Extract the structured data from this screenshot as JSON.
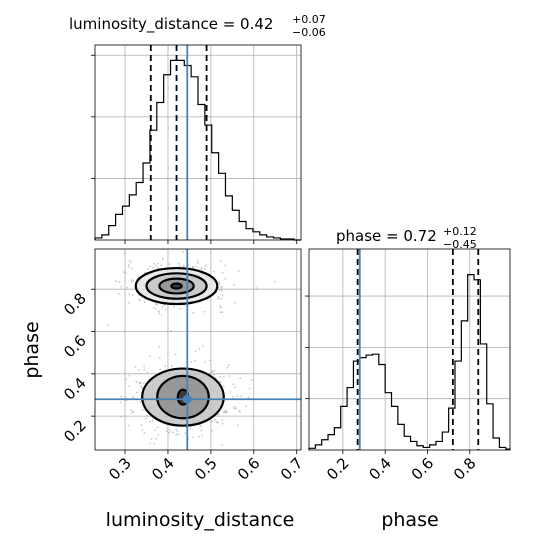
{
  "chart_data": [
    {
      "type": "histogram",
      "panel": "luminosity_distance marginal",
      "title": "luminosity_distance = 0.42",
      "title_upper": "+0.07",
      "title_lower": "−0.06",
      "xlim": [
        0.23,
        0.71
      ],
      "bin_edges": [
        0.23,
        0.246,
        0.262,
        0.278,
        0.294,
        0.31,
        0.326,
        0.342,
        0.358,
        0.374,
        0.39,
        0.406,
        0.422,
        0.438,
        0.454,
        0.47,
        0.486,
        0.502,
        0.518,
        0.534,
        0.55,
        0.566,
        0.582,
        0.598,
        0.614,
        0.63,
        0.646,
        0.662,
        0.678,
        0.694,
        0.71
      ],
      "counts": [
        2,
        5,
        14,
        25,
        33,
        44,
        56,
        75,
        107,
        134,
        161,
        175,
        175,
        170,
        159,
        132,
        112,
        85,
        65,
        43,
        29,
        18,
        11,
        8,
        5,
        3,
        2,
        1,
        1,
        0
      ],
      "ylim": [
        0,
        190
      ],
      "quantiles": [
        0.36,
        0.42,
        0.49
      ],
      "truth": 0.445,
      "xticks": [
        "0.3",
        "0.4",
        "0.5",
        "0.6",
        "0.7"
      ]
    },
    {
      "type": "histogram",
      "panel": "phase marginal",
      "title": "phase = 0.72",
      "title_upper": "+0.12",
      "title_lower": "−0.45",
      "xlim": [
        0.04,
        0.99
      ],
      "bin_edges": [
        0.04,
        0.07,
        0.1,
        0.13,
        0.16,
        0.19,
        0.22,
        0.25,
        0.28,
        0.31,
        0.34,
        0.37,
        0.4,
        0.43,
        0.46,
        0.49,
        0.52,
        0.55,
        0.58,
        0.61,
        0.64,
        0.67,
        0.7,
        0.73,
        0.76,
        0.79,
        0.82,
        0.85,
        0.88,
        0.91,
        0.94,
        0.97,
        0.99
      ],
      "counts": [
        2,
        6,
        12,
        18,
        26,
        51,
        73,
        104,
        108,
        111,
        112,
        100,
        67,
        51,
        30,
        16,
        10,
        5,
        3,
        6,
        10,
        21,
        49,
        104,
        151,
        205,
        199,
        124,
        54,
        14,
        3,
        1
      ],
      "ylim": [
        0,
        235
      ],
      "quantiles": [
        0.27,
        0.72,
        0.84
      ],
      "truth": 0.28,
      "xticks": [
        "0.2",
        "0.4",
        "0.6",
        "0.8"
      ]
    },
    {
      "type": "scatter",
      "panel": "2D posterior luminosity_distance vs phase",
      "xlim": [
        0.23,
        0.71
      ],
      "ylim": [
        0.04,
        0.99
      ],
      "xlabel": "luminosity_distance",
      "ylabel": "phase",
      "xticks": [
        "0.3",
        "0.4",
        "0.5",
        "0.6",
        "0.7"
      ],
      "yticks": [
        "0.2",
        "0.4",
        "0.6",
        "0.8"
      ],
      "truth": [
        0.445,
        0.28
      ],
      "modes": [
        {
          "center": [
            0.42,
            0.815
          ],
          "contours": [
            [
              0.012,
              0.012
            ],
            [
              0.04,
              0.035
            ],
            [
              0.07,
              0.06
            ],
            [
              0.095,
              0.085
            ]
          ]
        },
        {
          "center": [
            0.435,
            0.29
          ],
          "contours": [
            [
              0.012,
              0.035
            ],
            [
              0.06,
              0.1
            ],
            [
              0.095,
              0.135
            ]
          ]
        }
      ]
    }
  ]
}
